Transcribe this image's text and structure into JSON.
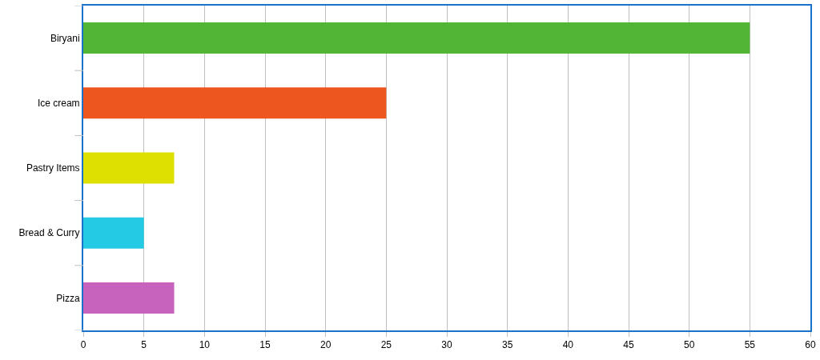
{
  "chart_data": {
    "type": "bar",
    "orientation": "horizontal",
    "categories": [
      "Biryani",
      "Ice cream",
      "Pastry Items",
      "Bread & Curry",
      "Pizza"
    ],
    "values": [
      55,
      25,
      7.5,
      5,
      7.5
    ],
    "colors": [
      "#52b535",
      "#ee561f",
      "#dde000",
      "#24c9e4",
      "#c763bc"
    ],
    "xlim": [
      0,
      60
    ],
    "xticks": [
      0,
      5,
      10,
      15,
      20,
      25,
      30,
      35,
      40,
      45,
      50,
      55,
      60
    ],
    "grid": "x",
    "legend": false
  }
}
